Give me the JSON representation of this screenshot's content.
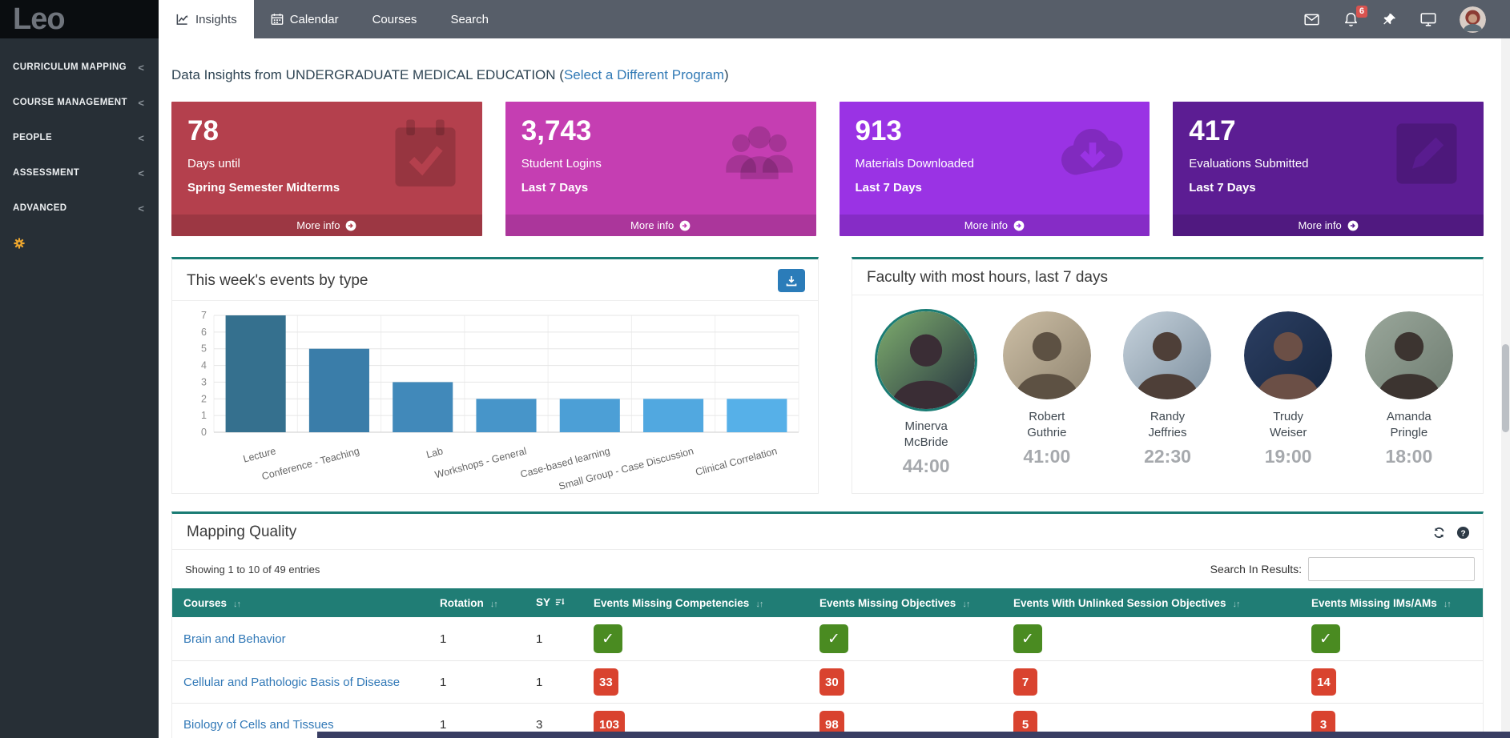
{
  "sidebar": {
    "logo": "Leo",
    "items": [
      "CURRICULUM MAPPING",
      "COURSE MANAGEMENT",
      "PEOPLE",
      "ASSESSMENT",
      "ADVANCED"
    ],
    "gear_icon": "gear-icon"
  },
  "topnav": {
    "tabs": [
      {
        "label": "Insights",
        "icon": "line-chart-icon",
        "active": true
      },
      {
        "label": "Calendar",
        "icon": "calendar-icon",
        "active": false
      },
      {
        "label": "Courses",
        "icon": "",
        "active": false
      },
      {
        "label": "Search",
        "icon": "",
        "active": false
      }
    ],
    "icons": [
      "mail-icon",
      "bell-icon",
      "pin-icon",
      "monitor-icon"
    ],
    "notification_count": "6",
    "avatar": "user-avatar"
  },
  "page_heading": {
    "prefix": "Data Insights from UNDERGRADUATE MEDICAL EDUCATION (",
    "link_text": "Select a Different Program",
    "suffix": ")"
  },
  "stat_cards": [
    {
      "value": "78",
      "label": "Days until",
      "sublabel": "Spring Semester Midterms",
      "more_label": "More info",
      "color": "#b4404d",
      "icon": "calendar-check-icon"
    },
    {
      "value": "3,743",
      "label": "Student Logins",
      "sublabel": "Last 7 Days",
      "more_label": "More info",
      "color": "#c53eb2",
      "icon": "users-icon"
    },
    {
      "value": "913",
      "label": "Materials Downloaded",
      "sublabel": "Last 7 Days",
      "more_label": "More info",
      "color": "#9a33e4",
      "icon": "cloud-download-icon"
    },
    {
      "value": "417",
      "label": "Evaluations Submitted",
      "sublabel": "Last 7 Days",
      "more_label": "More info",
      "color": "#5c1d93",
      "icon": "pencil-square-icon"
    }
  ],
  "chart_panel": {
    "title": "This week's events by type",
    "download_icon": "download-icon"
  },
  "chart_data": {
    "type": "bar",
    "title": "This week's events by type",
    "categories": [
      "Lecture",
      "Conference - Teaching",
      "Lab",
      "Workshops - General",
      "Case-based learning",
      "Small Group - Case Discussion",
      "Clinical Correlation"
    ],
    "values": [
      7,
      5,
      3,
      2,
      2,
      2,
      2
    ],
    "xlabel": "",
    "ylabel": "",
    "ylim": [
      0,
      7
    ],
    "yticks": [
      0,
      1,
      2,
      3,
      4,
      5,
      6,
      7
    ],
    "grid": true,
    "legend": false,
    "bar_colors": [
      "#35708e",
      "#3a7da9",
      "#4189ba",
      "#4795c9",
      "#4c9fd6",
      "#51a8e0",
      "#56b0e8"
    ]
  },
  "faculty_panel": {
    "title": "Faculty with most hours, last 7 days",
    "members": [
      {
        "name_lines": [
          "Minerva",
          "McBride"
        ],
        "hours": "44:00",
        "palette": [
          "#7fae6e",
          "#24313f",
          "#3a2d35"
        ],
        "highlight": true
      },
      {
        "name_lines": [
          "Robert",
          "Guthrie"
        ],
        "hours": "41:00",
        "palette": [
          "#cdbfa6",
          "#8f8470",
          "#5d5143"
        ],
        "highlight": false
      },
      {
        "name_lines": [
          "Randy",
          "Jeffries"
        ],
        "hours": "22:30",
        "palette": [
          "#c6d2dc",
          "#7d8f9e",
          "#4e3f38"
        ],
        "highlight": false
      },
      {
        "name_lines": [
          "Trudy",
          "Weiser"
        ],
        "hours": "19:00",
        "palette": [
          "#2c3f63",
          "#16263f",
          "#6b4f46"
        ],
        "highlight": false
      },
      {
        "name_lines": [
          "Amanda",
          "Pringle"
        ],
        "hours": "18:00",
        "palette": [
          "#9aa79b",
          "#6f7d71",
          "#3c3430"
        ],
        "highlight": false
      }
    ]
  },
  "mapping_quality": {
    "title": "Mapping Quality",
    "tools": [
      "refresh-icon",
      "help-icon"
    ],
    "showing_text": "Showing 1 to 10 of 49 entries",
    "search_label": "Search In Results:",
    "search_value": "",
    "columns": [
      {
        "label": "Courses",
        "sort": "updown"
      },
      {
        "label": "Rotation",
        "sort": "updown"
      },
      {
        "label": "SY",
        "sort": "amount"
      },
      {
        "label": "Events Missing Competencies",
        "sort": "updown"
      },
      {
        "label": "Events Missing Objectives",
        "sort": "updown"
      },
      {
        "label": "Events With Unlinked Session Objectives",
        "sort": "updown"
      },
      {
        "label": "Events Missing IMs/AMs",
        "sort": "updown"
      }
    ],
    "rows": [
      {
        "course": "Brain and Behavior",
        "rotation": "1",
        "sy": "1",
        "badges": [
          "check",
          "check",
          "check",
          "check"
        ]
      },
      {
        "course": "Cellular and Pathologic Basis of Disease",
        "rotation": "1",
        "sy": "1",
        "badges": [
          "33",
          "30",
          "7",
          "14"
        ]
      },
      {
        "course": "Biology of Cells and Tissues",
        "rotation": "1",
        "sy": "3",
        "badges": [
          "103",
          "98",
          "5",
          "3"
        ]
      }
    ],
    "status_colors": {
      "ok": "#4a8b21",
      "alert": "#d9432f"
    }
  },
  "theme": {
    "teal": "#1a7c74",
    "table_header_teal": "#207d75",
    "link_blue": "#3279b7",
    "nav_bg": "#575e69",
    "sidebar_bg": "#272f36",
    "logo_bg": "#0a0d10",
    "accent_orange": "#f0a82e",
    "bottom_bar": "#393e63",
    "badge_red": "#d9534f"
  }
}
